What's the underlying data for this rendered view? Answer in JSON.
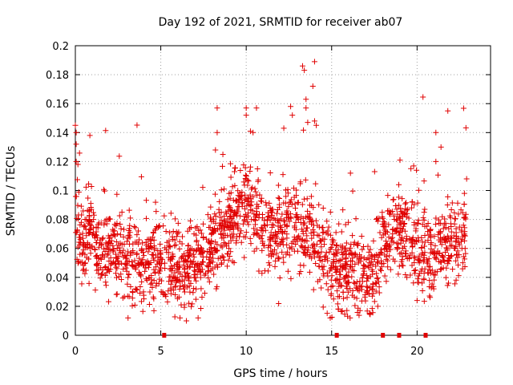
{
  "chart_data": {
    "type": "scatter",
    "title": "Day 192 of 2021, SRMTID for receiver ab07",
    "xlabel": "GPS time / hours",
    "ylabel": "SRMTID / TECUs",
    "xlim": [
      0,
      24.3
    ],
    "ylim": [
      0,
      0.2
    ],
    "xticks": [
      0,
      5,
      10,
      15,
      20
    ],
    "yticks": [
      0,
      0.02,
      0.04,
      0.06,
      0.08,
      0.1,
      0.12,
      0.14,
      0.16,
      0.18,
      0.2
    ],
    "grid": true,
    "marker": "+",
    "color": "#e00000",
    "series": [
      {
        "name": "SRMTID",
        "profile": [
          [
            0.0,
            0.075
          ],
          [
            0.2,
            0.07
          ],
          [
            0.5,
            0.062
          ],
          [
            0.9,
            0.072
          ],
          [
            1.2,
            0.063
          ],
          [
            1.6,
            0.058
          ],
          [
            2.0,
            0.062
          ],
          [
            2.5,
            0.062
          ],
          [
            3.0,
            0.052
          ],
          [
            3.5,
            0.048
          ],
          [
            4.0,
            0.047
          ],
          [
            4.5,
            0.05
          ],
          [
            5.0,
            0.052
          ],
          [
            5.5,
            0.05
          ],
          [
            6.0,
            0.048
          ],
          [
            6.5,
            0.046
          ],
          [
            7.0,
            0.05
          ],
          [
            7.5,
            0.055
          ],
          [
            8.0,
            0.062
          ],
          [
            8.5,
            0.068
          ],
          [
            9.0,
            0.075
          ],
          [
            9.5,
            0.085
          ],
          [
            10.0,
            0.092
          ],
          [
            10.5,
            0.085
          ],
          [
            11.0,
            0.072
          ],
          [
            11.5,
            0.072
          ],
          [
            12.0,
            0.075
          ],
          [
            12.5,
            0.078
          ],
          [
            13.0,
            0.072
          ],
          [
            13.5,
            0.068
          ],
          [
            14.0,
            0.062
          ],
          [
            14.5,
            0.052
          ],
          [
            15.0,
            0.048
          ],
          [
            15.5,
            0.046
          ],
          [
            16.0,
            0.045
          ],
          [
            16.5,
            0.042
          ],
          [
            17.0,
            0.04
          ],
          [
            17.5,
            0.04
          ],
          [
            18.0,
            0.062
          ],
          [
            18.5,
            0.068
          ],
          [
            19.0,
            0.072
          ],
          [
            19.5,
            0.065
          ],
          [
            20.0,
            0.058
          ],
          [
            20.5,
            0.058
          ],
          [
            21.0,
            0.058
          ],
          [
            21.5,
            0.062
          ],
          [
            22.0,
            0.065
          ],
          [
            22.5,
            0.068
          ],
          [
            22.9,
            0.072
          ]
        ],
        "spread": 0.014,
        "point_count": 2000,
        "peaks": [
          [
            0.0,
            0.145
          ],
          [
            0.05,
            0.14
          ],
          [
            0.05,
            0.132
          ],
          [
            0.05,
            0.12
          ],
          [
            0.15,
            0.118
          ],
          [
            0.85,
            0.138
          ],
          [
            8.3,
            0.157
          ],
          [
            8.3,
            0.14
          ],
          [
            8.2,
            0.128
          ],
          [
            10.0,
            0.157
          ],
          [
            10.0,
            0.152
          ],
          [
            10.6,
            0.157
          ],
          [
            10.4,
            0.14
          ],
          [
            12.2,
            0.143
          ],
          [
            12.6,
            0.158
          ],
          [
            12.7,
            0.152
          ],
          [
            13.3,
            0.186
          ],
          [
            13.4,
            0.183
          ],
          [
            13.5,
            0.163
          ],
          [
            13.5,
            0.157
          ],
          [
            13.6,
            0.147
          ],
          [
            13.9,
            0.172
          ],
          [
            14.0,
            0.189
          ],
          [
            14.0,
            0.148
          ],
          [
            14.1,
            0.145
          ],
          [
            16.1,
            0.112
          ],
          [
            19.0,
            0.121
          ],
          [
            19.8,
            0.117
          ],
          [
            21.1,
            0.14
          ],
          [
            21.1,
            0.12
          ],
          [
            21.4,
            0.13
          ],
          [
            21.8,
            0.155
          ],
          [
            22.9,
            0.108
          ],
          [
            6.5,
            0.01
          ],
          [
            15.4,
            0.018
          ],
          [
            17.7,
            0.02
          ],
          [
            20.0,
            0.024
          ]
        ]
      }
    ],
    "gap_markers_x": [
      5.2,
      15.3,
      18.0,
      18.95,
      20.5
    ]
  }
}
